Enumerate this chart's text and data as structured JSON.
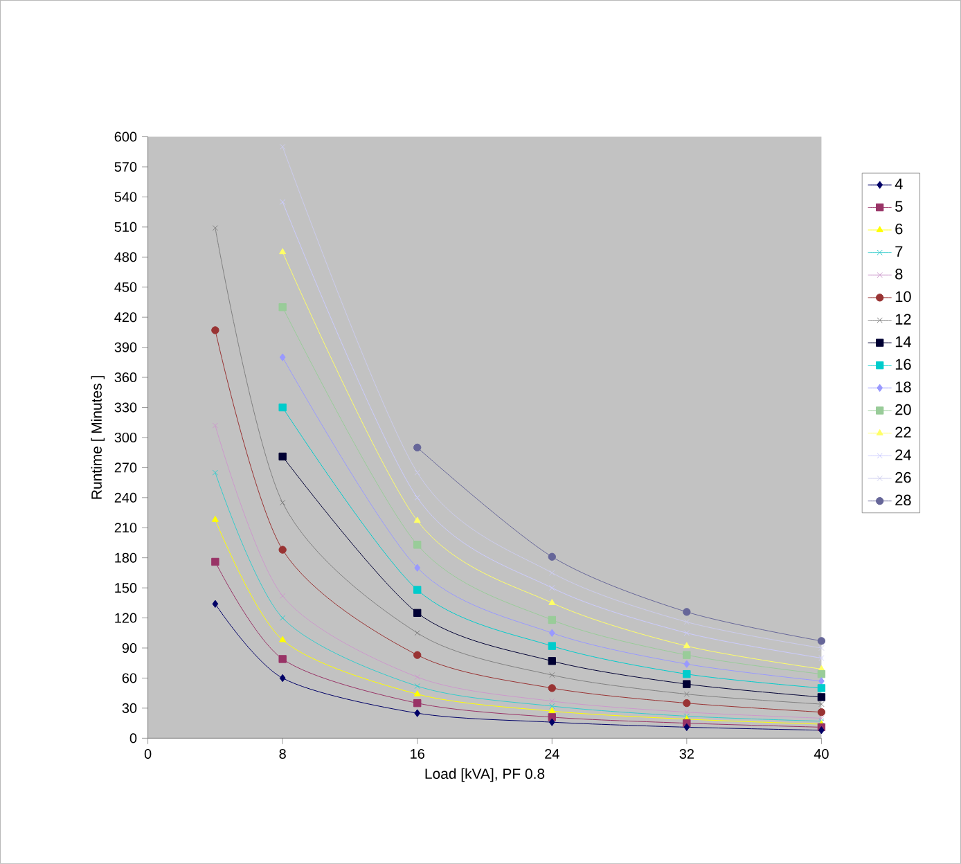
{
  "chart_data": {
    "type": "line",
    "xlabel": "Load [kVA], PF 0.8",
    "ylabel": "Runtime  [ Minutes ]",
    "x": [
      4,
      8,
      16,
      24,
      32,
      40
    ],
    "xlim": [
      0,
      40
    ],
    "xticks": [
      0,
      8,
      16,
      24,
      32,
      40
    ],
    "ylim": [
      0,
      600
    ],
    "yticks": [
      0,
      30,
      60,
      90,
      120,
      150,
      180,
      210,
      240,
      270,
      300,
      330,
      360,
      390,
      420,
      450,
      480,
      510,
      540,
      570,
      600
    ],
    "legend": "right",
    "grid": false,
    "line_style": "solid",
    "series": [
      {
        "name": "4",
        "color": "#000066",
        "marker": "diamond",
        "values": [
          134,
          60,
          25,
          16,
          11,
          8
        ]
      },
      {
        "name": "5",
        "color": "#993366",
        "marker": "square",
        "values": [
          176,
          79,
          35,
          21,
          15,
          11
        ]
      },
      {
        "name": "6",
        "color": "#ffff00",
        "marker": "triangle",
        "values": [
          218,
          98,
          44,
          27,
          19,
          14
        ]
      },
      {
        "name": "7",
        "color": "#33cccc",
        "marker": "cross",
        "values": [
          265,
          120,
          52,
          32,
          22,
          17
        ]
      },
      {
        "name": "8",
        "color": "#cc99cc",
        "marker": "cross",
        "values": [
          312,
          142,
          61,
          37,
          26,
          20
        ]
      },
      {
        "name": "10",
        "color": "#993333",
        "marker": "circle",
        "values": [
          407,
          188,
          83,
          50,
          35,
          26
        ]
      },
      {
        "name": "12",
        "color": "#808080",
        "marker": "cross",
        "values": [
          509,
          235,
          105,
          63,
          44,
          34
        ]
      },
      {
        "name": "14",
        "color": "#000033",
        "marker": "square",
        "values": [
          null,
          281,
          125,
          77,
          54,
          41
        ]
      },
      {
        "name": "16",
        "color": "#00cccc",
        "marker": "square",
        "values": [
          null,
          330,
          148,
          92,
          64,
          50
        ]
      },
      {
        "name": "18",
        "color": "#9999ff",
        "marker": "diamond",
        "values": [
          null,
          380,
          170,
          105,
          74,
          57
        ]
      },
      {
        "name": "20",
        "color": "#99cc99",
        "marker": "square",
        "values": [
          null,
          430,
          193,
          118,
          83,
          64
        ]
      },
      {
        "name": "22",
        "color": "#ffff66",
        "marker": "triangle",
        "values": [
          null,
          485,
          217,
          135,
          92,
          69
        ]
      },
      {
        "name": "24",
        "color": "#ccccff",
        "marker": "cross",
        "values": [
          null,
          535,
          240,
          150,
          105,
          80
        ]
      },
      {
        "name": "26",
        "color": "#ccccee",
        "marker": "cross",
        "values": [
          null,
          590,
          265,
          165,
          116,
          90
        ]
      },
      {
        "name": "28",
        "color": "#666699",
        "marker": "circle",
        "values": [
          null,
          null,
          290,
          181,
          126,
          97
        ]
      }
    ]
  }
}
